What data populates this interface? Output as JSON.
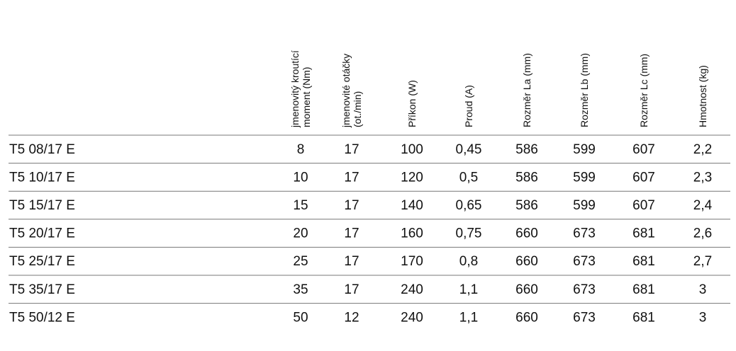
{
  "table": {
    "header": [
      [
        "jmenovitý kroutící",
        "moment (Nm)"
      ],
      [
        "jmenovité otáčky",
        "(ot./min)"
      ],
      [
        "Příkon (W)"
      ],
      [
        "Proud (A)"
      ],
      [
        "Rozměr La (mm)"
      ],
      [
        "Rozměr Lb (mm)"
      ],
      [
        "Rozměr Lc (mm)"
      ],
      [
        "Hmotnost (kg)"
      ]
    ],
    "rows": [
      [
        "T5 08/17 E",
        "8",
        "17",
        "100",
        "0,45",
        "586",
        "599",
        "607",
        "2,2"
      ],
      [
        "T5 10/17 E",
        "10",
        "17",
        "120",
        "0,5",
        "586",
        "599",
        "607",
        "2,3"
      ],
      [
        "T5 15/17 E",
        "15",
        "17",
        "140",
        "0,65",
        "586",
        "599",
        "607",
        "2,4"
      ],
      [
        "T5 20/17 E",
        "20",
        "17",
        "160",
        "0,75",
        "660",
        "673",
        "681",
        "2,6"
      ],
      [
        "T5 25/17 E",
        "25",
        "17",
        "170",
        "0,8",
        "660",
        "673",
        "681",
        "2,7"
      ],
      [
        "T5 35/17 E",
        "35",
        "17",
        "240",
        "1,1",
        "660",
        "673",
        "681",
        "3"
      ],
      [
        "T5 50/12 E",
        "50",
        "12",
        "240",
        "1,1",
        "660",
        "673",
        "681",
        "3"
      ]
    ]
  }
}
